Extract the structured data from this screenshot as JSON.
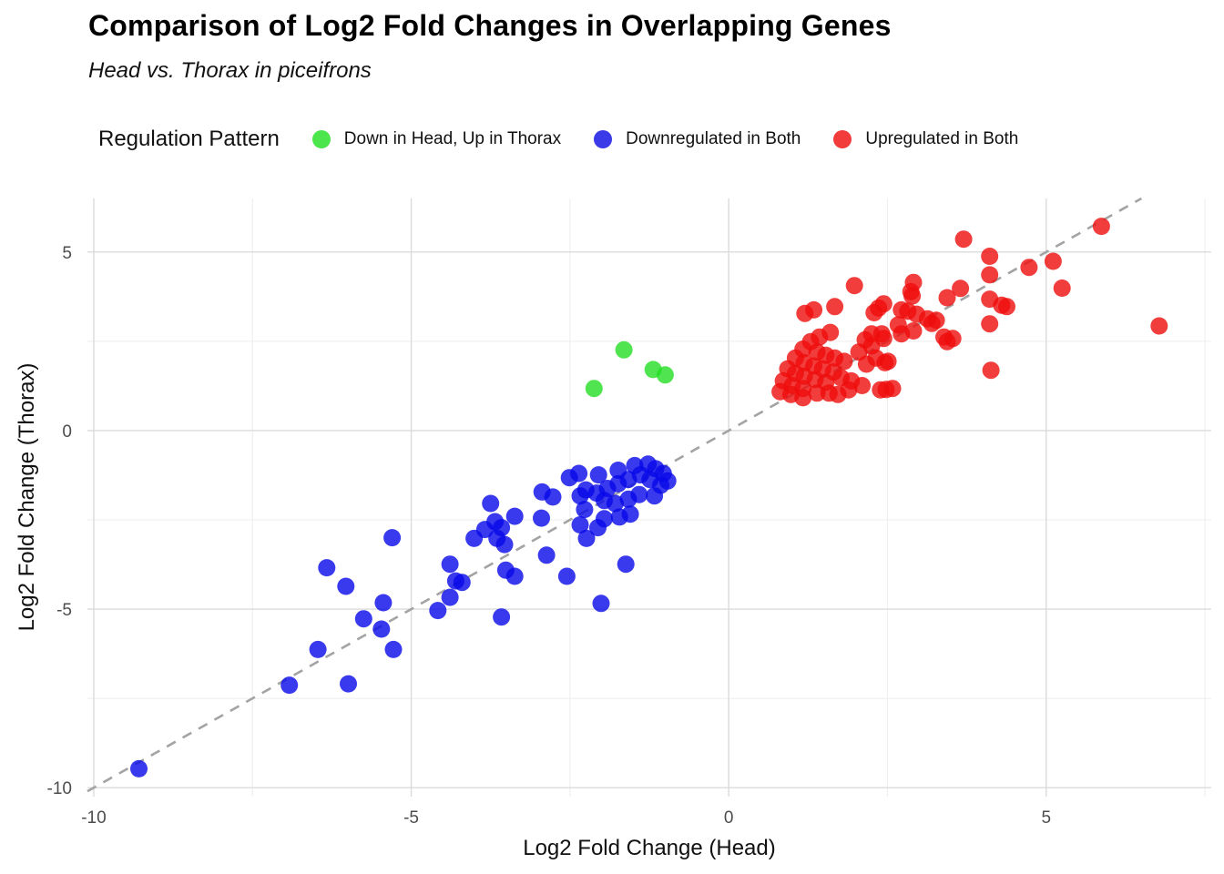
{
  "header": {
    "title": "Comparison of Log2 Fold Changes in Overlapping Genes",
    "subtitle": "Head vs. Thorax in piceifrons"
  },
  "legend": {
    "title": "Regulation Pattern",
    "items": [
      {
        "label": "Down in Head, Up in Thorax",
        "color": "#4ce64c"
      },
      {
        "label": "Downregulated in Both",
        "color": "#3a3ae8"
      },
      {
        "label": "Upregulated in Both",
        "color": "#f23b3b"
      }
    ]
  },
  "axes": {
    "x": {
      "title": "Log2 Fold Change (Head)"
    },
    "y": {
      "title": "Log2 Fold Change (Thorax)"
    }
  },
  "chart_data": {
    "type": "scatter",
    "title": "Comparison of Log2 Fold Changes in Overlapping Genes",
    "subtitle": "Head vs. Thorax in piceifrons",
    "xlabel": "Log2 Fold Change (Head)",
    "ylabel": "Log2 Fold Change (Thorax)",
    "xlim": [
      -10.1,
      7.6
    ],
    "ylim": [
      -10.25,
      6.5
    ],
    "x_major_ticks": [
      -10,
      -5,
      0,
      5
    ],
    "x_minor_ticks": [
      -7.5,
      -2.5,
      2.5,
      7.5
    ],
    "y_major_ticks": [
      5,
      0,
      -5,
      -10
    ],
    "y_minor_ticks": [
      2.5,
      -2.5,
      -7.5
    ],
    "grid": true,
    "legend_position": "top",
    "grid_major_color": "#dbdbdb",
    "grid_minor_color": "#ededed",
    "tick_label_color": "#4d4d4d",
    "identity_line": {
      "from": -10.1,
      "to": 6.5,
      "style": "dashed",
      "color": "#a3a3a3",
      "dash": "11 9",
      "width": 2.6
    },
    "marker_opacity": 0.8,
    "series": [
      {
        "name": "Down in Head, Up in Thorax",
        "color": "#24df24",
        "points": [
          [
            -1.65,
            2.26
          ],
          [
            -2.12,
            1.18
          ],
          [
            -1.19,
            1.71
          ],
          [
            -1.0,
            1.56
          ]
        ]
      },
      {
        "name": "Downregulated in Both",
        "color": "#0808e8",
        "points": [
          [
            -9.29,
            -9.47
          ],
          [
            -6.92,
            -7.13
          ],
          [
            -5.99,
            -7.09
          ],
          [
            -6.47,
            -6.13
          ],
          [
            -5.28,
            -6.13
          ],
          [
            -5.47,
            -5.56
          ],
          [
            -5.75,
            -5.27
          ],
          [
            -3.58,
            -5.22
          ],
          [
            -4.58,
            -5.04
          ],
          [
            -2.01,
            -4.84
          ],
          [
            -5.44,
            -4.82
          ],
          [
            -4.39,
            -4.67
          ],
          [
            -6.03,
            -4.36
          ],
          [
            -4.2,
            -4.25
          ],
          [
            -4.3,
            -4.21
          ],
          [
            -3.37,
            -4.08
          ],
          [
            -2.55,
            -4.08
          ],
          [
            -3.51,
            -3.91
          ],
          [
            -6.33,
            -3.84
          ],
          [
            -4.39,
            -3.74
          ],
          [
            -1.62,
            -3.74
          ],
          [
            -2.87,
            -3.49
          ],
          [
            -3.53,
            -3.19
          ],
          [
            -3.65,
            -3.02
          ],
          [
            -5.3,
            -3.0
          ],
          [
            -4.01,
            -3.02
          ],
          [
            -2.24,
            -3.02
          ],
          [
            -3.84,
            -2.77
          ],
          [
            -3.58,
            -2.72
          ],
          [
            -2.06,
            -2.72
          ],
          [
            -2.34,
            -2.64
          ],
          [
            -3.68,
            -2.55
          ],
          [
            -2.95,
            -2.45
          ],
          [
            -3.37,
            -2.4
          ],
          [
            -1.96,
            -2.47
          ],
          [
            -1.72,
            -2.42
          ],
          [
            -1.55,
            -2.34
          ],
          [
            -2.27,
            -2.21
          ],
          [
            -3.75,
            -2.04
          ],
          [
            -1.79,
            -2.04
          ],
          [
            -1.96,
            -1.96
          ],
          [
            -1.58,
            -1.92
          ],
          [
            -2.77,
            -1.86
          ],
          [
            -2.34,
            -1.83
          ],
          [
            -1.41,
            -1.79
          ],
          [
            -1.17,
            -1.83
          ],
          [
            -2.08,
            -1.75
          ],
          [
            -2.94,
            -1.72
          ],
          [
            -2.25,
            -1.66
          ],
          [
            -1.91,
            -1.62
          ],
          [
            -1.07,
            -1.53
          ],
          [
            -1.74,
            -1.49
          ],
          [
            -0.96,
            -1.41
          ],
          [
            -1.24,
            -1.37
          ],
          [
            -1.58,
            -1.37
          ],
          [
            -2.51,
            -1.32
          ],
          [
            -1.39,
            -1.24
          ],
          [
            -2.05,
            -1.24
          ],
          [
            -1.03,
            -1.2
          ],
          [
            -2.36,
            -1.2
          ],
          [
            -1.74,
            -1.11
          ],
          [
            -1.15,
            -1.07
          ],
          [
            -1.48,
            -0.98
          ],
          [
            -1.27,
            -0.94
          ]
        ]
      },
      {
        "name": "Upregulated in Both",
        "color": "#ef0c0c",
        "points": [
          [
            5.87,
            5.72
          ],
          [
            3.7,
            5.36
          ],
          [
            4.11,
            4.88
          ],
          [
            5.11,
            4.74
          ],
          [
            4.73,
            4.57
          ],
          [
            4.11,
            4.36
          ],
          [
            2.91,
            4.15
          ],
          [
            1.98,
            4.06
          ],
          [
            5.25,
            3.99
          ],
          [
            3.65,
            3.98
          ],
          [
            2.87,
            3.89
          ],
          [
            2.89,
            3.77
          ],
          [
            3.44,
            3.72
          ],
          [
            4.11,
            3.68
          ],
          [
            2.44,
            3.55
          ],
          [
            4.38,
            3.47
          ],
          [
            4.3,
            3.51
          ],
          [
            1.67,
            3.47
          ],
          [
            2.36,
            3.43
          ],
          [
            2.72,
            3.38
          ],
          [
            1.34,
            3.38
          ],
          [
            2.82,
            3.34
          ],
          [
            1.2,
            3.28
          ],
          [
            2.29,
            3.3
          ],
          [
            2.96,
            3.26
          ],
          [
            3.13,
            3.13
          ],
          [
            3.27,
            3.09
          ],
          [
            3.2,
            3.0
          ],
          [
            4.11,
            2.99
          ],
          [
            2.67,
            2.96
          ],
          [
            6.78,
            2.93
          ],
          [
            2.91,
            2.79
          ],
          [
            1.6,
            2.75
          ],
          [
            2.41,
            2.71
          ],
          [
            2.25,
            2.71
          ],
          [
            2.72,
            2.71
          ],
          [
            1.43,
            2.62
          ],
          [
            3.39,
            2.62
          ],
          [
            2.44,
            2.58
          ],
          [
            3.53,
            2.58
          ],
          [
            2.15,
            2.54
          ],
          [
            1.29,
            2.49
          ],
          [
            3.44,
            2.49
          ],
          [
            2.25,
            2.37
          ],
          [
            1.17,
            2.28
          ],
          [
            1.39,
            2.2
          ],
          [
            2.05,
            2.2
          ],
          [
            1.53,
            2.11
          ],
          [
            1.67,
            2.03
          ],
          [
            1.05,
            2.03
          ],
          [
            2.32,
            2.03
          ],
          [
            1.82,
            1.94
          ],
          [
            2.51,
            1.94
          ],
          [
            1.19,
            1.9
          ],
          [
            2.46,
            1.9
          ],
          [
            2.17,
            1.86
          ],
          [
            1.34,
            1.81
          ],
          [
            1.48,
            1.73
          ],
          [
            0.93,
            1.73
          ],
          [
            4.13,
            1.69
          ],
          [
            1.65,
            1.64
          ],
          [
            1.05,
            1.6
          ],
          [
            1.19,
            1.52
          ],
          [
            1.77,
            1.48
          ],
          [
            1.36,
            1.43
          ],
          [
            0.86,
            1.39
          ],
          [
            1.93,
            1.39
          ],
          [
            1.53,
            1.35
          ],
          [
            1.0,
            1.26
          ],
          [
            2.1,
            1.26
          ],
          [
            1.17,
            1.18
          ],
          [
            2.58,
            1.18
          ],
          [
            2.39,
            1.14
          ],
          [
            1.89,
            1.14
          ],
          [
            2.48,
            1.15
          ],
          [
            1.72,
            1.01
          ],
          [
            0.98,
            1.01
          ],
          [
            1.39,
            1.05
          ],
          [
            1.58,
            1.05
          ],
          [
            0.81,
            1.09
          ],
          [
            1.17,
            0.92
          ]
        ]
      }
    ]
  }
}
